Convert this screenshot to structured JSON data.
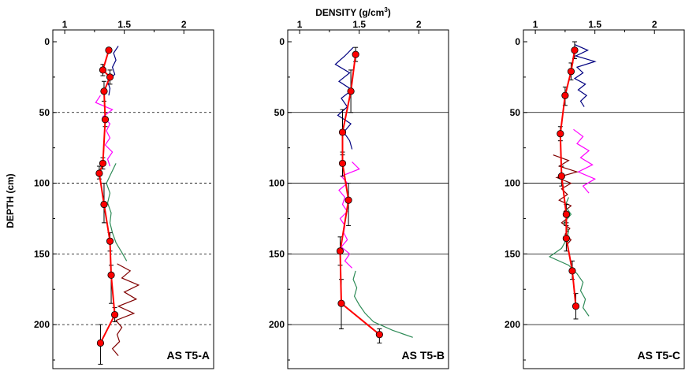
{
  "figure": {
    "top_label": "DENSITY (g/cm",
    "top_label_sup": "3",
    "top_label_close": ")",
    "ylabel": "DEPTH (cm)"
  },
  "colors": {
    "gamma_top": "#000080",
    "gamma_mid": "#ff00ff",
    "gamma_green": "#2e8b57",
    "gamma_brown": "#800000",
    "core_line": "#ff0000",
    "core_marker": "#ff0000",
    "error_bar": "#000000",
    "grid": "#000000"
  },
  "chart_data": [
    {
      "type": "line",
      "label": "AS T5-A",
      "xlim": [
        0.9,
        2.25
      ],
      "ylim": [
        0,
        230
      ],
      "x_ticks": [
        1,
        1.5,
        2
      ],
      "x_tick_labels": [
        "1",
        "1.5",
        "2"
      ],
      "y_ticks": [
        0,
        50,
        100,
        150,
        200
      ],
      "y_tick_labels": [
        "0",
        "50",
        "100",
        "150",
        "200"
      ],
      "grid_style": "dashed",
      "core_samples": {
        "depth": [
          6,
          20,
          25,
          35,
          55,
          86,
          93,
          115,
          141,
          165,
          193,
          213
        ],
        "density": [
          1.37,
          1.32,
          1.38,
          1.33,
          1.34,
          1.32,
          1.29,
          1.33,
          1.38,
          1.39,
          1.42,
          1.3
        ],
        "error_low": [
          null,
          16,
          20,
          28,
          50,
          82,
          88,
          100,
          135,
          158,
          188,
          200
        ],
        "error_high": [
          null,
          24,
          30,
          42,
          60,
          90,
          97,
          128,
          148,
          185,
          198,
          228
        ]
      },
      "scan_series": [
        {
          "color_key": "gamma_top",
          "depth": [
            3,
            8,
            13,
            18,
            23,
            28,
            33,
            38
          ],
          "density": [
            1.45,
            1.41,
            1.43,
            1.4,
            1.42,
            1.36,
            1.38,
            1.37
          ]
        },
        {
          "color_key": "gamma_mid",
          "depth": [
            38,
            43,
            48,
            53,
            58,
            63,
            68,
            73,
            78,
            83,
            88
          ],
          "density": [
            1.3,
            1.26,
            1.4,
            1.32,
            1.38,
            1.35,
            1.38,
            1.34,
            1.4,
            1.36,
            1.38
          ]
        },
        {
          "color_key": "gamma_green",
          "depth": [
            86,
            93,
            100,
            107,
            114,
            121,
            128,
            135,
            142,
            149,
            155
          ],
          "density": [
            1.43,
            1.39,
            1.35,
            1.38,
            1.36,
            1.39,
            1.38,
            1.4,
            1.43,
            1.48,
            1.52
          ]
        },
        {
          "color_key": "gamma_brown",
          "depth": [
            157,
            162,
            167,
            172,
            177,
            182,
            187,
            192,
            197,
            202,
            207,
            212,
            217,
            222
          ],
          "density": [
            1.44,
            1.55,
            1.48,
            1.62,
            1.5,
            1.6,
            1.45,
            1.58,
            1.43,
            1.48,
            1.44,
            1.46,
            1.4,
            1.45
          ]
        }
      ]
    },
    {
      "type": "line",
      "label": "AS T5-B",
      "xlim": [
        0.9,
        2.25
      ],
      "ylim": [
        0,
        230
      ],
      "x_ticks": [
        1,
        1.5,
        2
      ],
      "x_tick_labels": [
        "1",
        "1.5",
        "2"
      ],
      "y_ticks": [
        0,
        50,
        100,
        150,
        200
      ],
      "y_tick_labels": [
        "0",
        "50",
        "100",
        "150",
        "200"
      ],
      "grid_style": "solid",
      "core_samples": {
        "depth": [
          9,
          35,
          64,
          86,
          112,
          148,
          185,
          207
        ],
        "density": [
          1.47,
          1.43,
          1.36,
          1.36,
          1.41,
          1.34,
          1.35,
          1.67
        ],
        "error_low": [
          4,
          20,
          48,
          78,
          100,
          138,
          168,
          203
        ],
        "error_high": [
          14,
          50,
          80,
          95,
          130,
          158,
          203,
          213
        ]
      },
      "scan_series": [
        {
          "color_key": "gamma_top",
          "depth": [
            4,
            10,
            16,
            22,
            28,
            34,
            40,
            46,
            52,
            58,
            64,
            70,
            76
          ],
          "density": [
            1.45,
            1.38,
            1.3,
            1.42,
            1.33,
            1.44,
            1.35,
            1.4,
            1.32,
            1.43,
            1.37,
            1.42,
            1.44
          ]
        },
        {
          "color_key": "gamma_mid",
          "depth": [
            85,
            90,
            95,
            100,
            105,
            110,
            115,
            120,
            125,
            130,
            135,
            140,
            145,
            150,
            155,
            160
          ],
          "density": [
            1.44,
            1.5,
            1.35,
            1.4,
            1.33,
            1.38,
            1.36,
            1.4,
            1.34,
            1.38,
            1.37,
            1.4,
            1.35,
            1.42,
            1.38,
            1.44
          ]
        },
        {
          "color_key": "gamma_green",
          "depth": [
            162,
            168,
            174,
            180,
            186,
            192,
            198,
            204,
            209
          ],
          "density": [
            1.47,
            1.45,
            1.48,
            1.46,
            1.5,
            1.55,
            1.62,
            1.78,
            1.95
          ]
        }
      ]
    },
    {
      "type": "line",
      "label": "AS T5-C",
      "xlim": [
        0.9,
        2.25
      ],
      "ylim": [
        0,
        230
      ],
      "x_ticks": [
        1,
        1.5,
        2
      ],
      "x_tick_labels": [
        "1",
        "1.5",
        "2"
      ],
      "y_ticks": [
        0,
        50,
        100,
        150,
        200
      ],
      "y_tick_labels": [
        "0",
        "50",
        "100",
        "150",
        "200"
      ],
      "grid_style": "solid",
      "core_samples": {
        "depth": [
          6,
          21,
          38,
          65,
          95,
          122,
          139,
          162,
          187
        ],
        "density": [
          1.33,
          1.3,
          1.25,
          1.21,
          1.22,
          1.26,
          1.26,
          1.31,
          1.34
        ],
        "error_low": [
          0,
          15,
          32,
          60,
          88,
          115,
          130,
          155,
          178
        ],
        "error_high": [
          12,
          27,
          45,
          70,
          102,
          128,
          148,
          168,
          196
        ]
      },
      "scan_series": [
        {
          "color_key": "gamma_top",
          "depth": [
            2,
            6,
            10,
            14,
            18,
            22,
            26,
            30,
            34,
            38,
            42,
            46
          ],
          "density": [
            1.33,
            1.44,
            1.34,
            1.5,
            1.35,
            1.4,
            1.33,
            1.42,
            1.36,
            1.43,
            1.38,
            1.41
          ]
        },
        {
          "color_key": "gamma_mid",
          "depth": [
            62,
            67,
            72,
            77,
            82,
            87,
            92,
            97,
            102,
            107
          ],
          "density": [
            1.32,
            1.4,
            1.35,
            1.45,
            1.38,
            1.48,
            1.36,
            1.5,
            1.4,
            1.45
          ]
        },
        {
          "color_key": "gamma_brown",
          "depth": [
            80,
            84,
            88,
            92,
            96,
            100,
            104,
            108,
            112,
            116,
            120,
            124,
            128,
            132,
            136,
            140,
            144
          ],
          "density": [
            1.15,
            1.28,
            1.2,
            1.35,
            1.18,
            1.3,
            1.22,
            1.27,
            1.2,
            1.3,
            1.24,
            1.28,
            1.22,
            1.29,
            1.25,
            1.3,
            1.26
          ]
        },
        {
          "color_key": "gamma_green",
          "depth": [
            110,
            116,
            122,
            128,
            134,
            140,
            146,
            152,
            158,
            164,
            170,
            176,
            182,
            188,
            194
          ],
          "density": [
            1.28,
            1.25,
            1.3,
            1.24,
            1.28,
            1.26,
            1.22,
            1.12,
            1.28,
            1.35,
            1.4,
            1.38,
            1.42,
            1.4,
            1.45
          ]
        }
      ]
    }
  ]
}
